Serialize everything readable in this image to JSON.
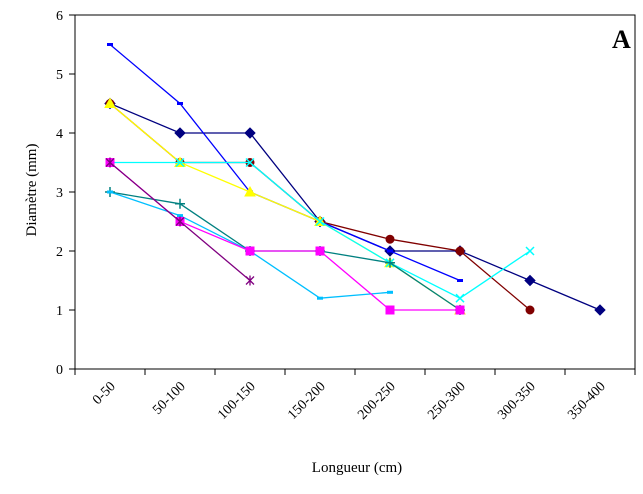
{
  "chart_data": {
    "type": "line",
    "title": "",
    "panel_label": "A",
    "xlabel": "Longueur (cm)",
    "ylabel": "Diamètre (mm)",
    "ylim": [
      0,
      6
    ],
    "yticks": [
      "0",
      "1",
      "2",
      "3",
      "4",
      "5",
      "6"
    ],
    "grid": false,
    "categories": [
      "0-50",
      "50-100",
      "100-150",
      "150-200",
      "200-250",
      "250-300",
      "300-350",
      "350-400"
    ],
    "series": [
      {
        "color": "#000080",
        "marker": "diamond",
        "values": [
          4.5,
          4.0,
          4.0,
          2.5,
          2.0,
          2.0,
          1.5,
          1.0
        ]
      },
      {
        "color": "#800000",
        "marker": "circle",
        "values": [
          4.5,
          3.5,
          3.5,
          2.5,
          2.2,
          2.0,
          1.0,
          null
        ]
      },
      {
        "color": "#0000FF",
        "marker": "dash",
        "values": [
          5.5,
          4.5,
          3.0,
          2.5,
          2.0,
          1.5,
          null,
          null
        ]
      },
      {
        "color": "#FFFF00",
        "marker": "triangle",
        "values": [
          4.5,
          3.5,
          3.0,
          2.5,
          1.8,
          1.0,
          null,
          null
        ]
      },
      {
        "color": "#00FFFF",
        "marker": "x",
        "values": [
          3.5,
          3.5,
          3.5,
          2.5,
          1.8,
          1.2,
          2.0,
          null
        ]
      },
      {
        "color": "#008080",
        "marker": "plus",
        "values": [
          3.0,
          2.8,
          2.0,
          2.0,
          1.8,
          1.0,
          null,
          null
        ]
      },
      {
        "color": "#00BFFF",
        "marker": "dash",
        "values": [
          3.0,
          2.6,
          2.0,
          1.2,
          1.3,
          null,
          null,
          null
        ]
      },
      {
        "color": "#FF00FF",
        "marker": "square",
        "values": [
          3.5,
          2.5,
          2.0,
          2.0,
          1.0,
          1.0,
          null,
          null
        ]
      },
      {
        "color": "#800080",
        "marker": "star",
        "values": [
          3.5,
          2.5,
          1.5,
          null,
          null,
          null,
          null,
          null
        ]
      }
    ]
  }
}
